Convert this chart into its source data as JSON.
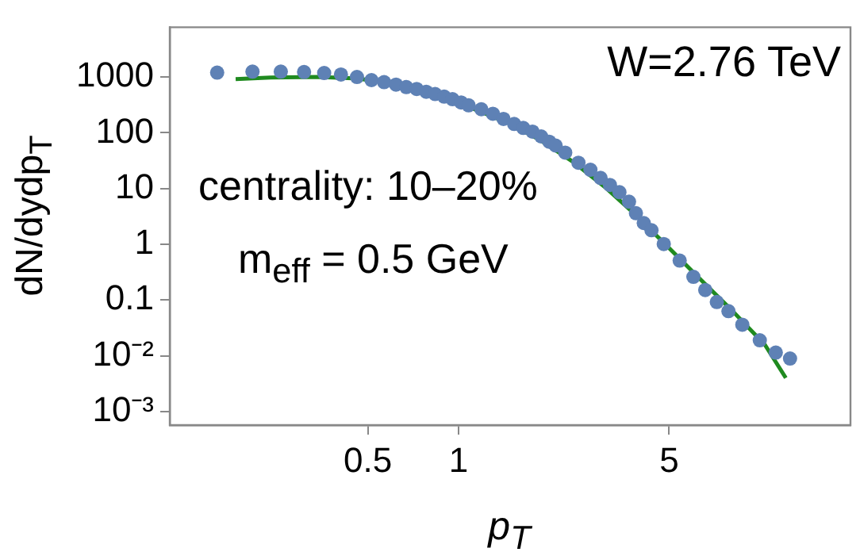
{
  "chart_data": {
    "type": "scatter",
    "xlabel": "p$_{T}$",
    "ylabel": "dN/dydp$_{T}$",
    "annotations": [
      "W=2.76 TeV",
      "centrality: 10–20%",
      "m$_{eff}$ = 0.5 GeV"
    ],
    "log": "xy",
    "grid": false,
    "legend": false,
    "xlim": [
      0.11,
      20
    ],
    "xticks": [
      0.5,
      1,
      5
    ],
    "ylim": [
      0.00057,
      7800
    ],
    "yticks": [
      1000,
      100,
      10,
      1,
      0.1,
      {
        "value": 0.01,
        "label": "10⁻²"
      },
      {
        "value": 0.001,
        "label": "10⁻³"
      }
    ],
    "series": [
      {
        "marker": "circle",
        "color": "#5e81b5",
        "x": [
          0.158,
          0.207,
          0.257,
          0.307,
          0.358,
          0.407,
          0.46,
          0.514,
          0.566,
          0.62,
          0.671,
          0.726,
          0.781,
          0.836,
          0.896,
          0.955,
          1.02,
          1.08,
          1.19,
          1.3,
          1.41,
          1.53,
          1.64,
          1.76,
          1.88,
          2.0,
          2.1,
          2.26,
          2.5,
          2.74,
          2.96,
          3.18,
          3.42,
          3.68,
          3.88,
          4.12,
          4.37,
          4.8,
          5.42,
          6.02,
          6.59,
          7.2,
          7.87,
          8.75,
          10.0,
          11.3,
          12.6
        ],
        "values": [
          1200,
          1250,
          1250,
          1230,
          1180,
          1110,
          1000,
          880,
          810,
          730,
          660,
          610,
          545,
          495,
          445,
          400,
          350,
          310,
          264,
          219,
          177,
          144,
          122,
          105,
          86,
          69,
          59,
          44,
          29,
          21.7,
          15.5,
          11.6,
          8.6,
          5.8,
          3.6,
          2.4,
          1.78,
          1.01,
          0.51,
          0.26,
          0.151,
          0.092,
          0.063,
          0.036,
          0.0189,
          0.0114,
          0.0089
        ]
      },
      {
        "type": "line",
        "marker": "none",
        "line_style": "solid",
        "color": "#1f8a1f",
        "x": [
          0.182,
          0.238,
          0.342,
          0.464,
          0.629,
          0.854,
          1.16,
          1.48,
          1.88,
          2.4,
          3.07,
          3.91,
          4.99,
          6.37,
          8.13,
          10.4,
          12.2
        ],
        "values": [
          920,
          980,
          1000,
          940,
          730,
          460,
          250,
          145,
          72,
          30,
          10.5,
          3.2,
          0.86,
          0.23,
          0.063,
          0.0157,
          0.004
        ]
      }
    ]
  }
}
